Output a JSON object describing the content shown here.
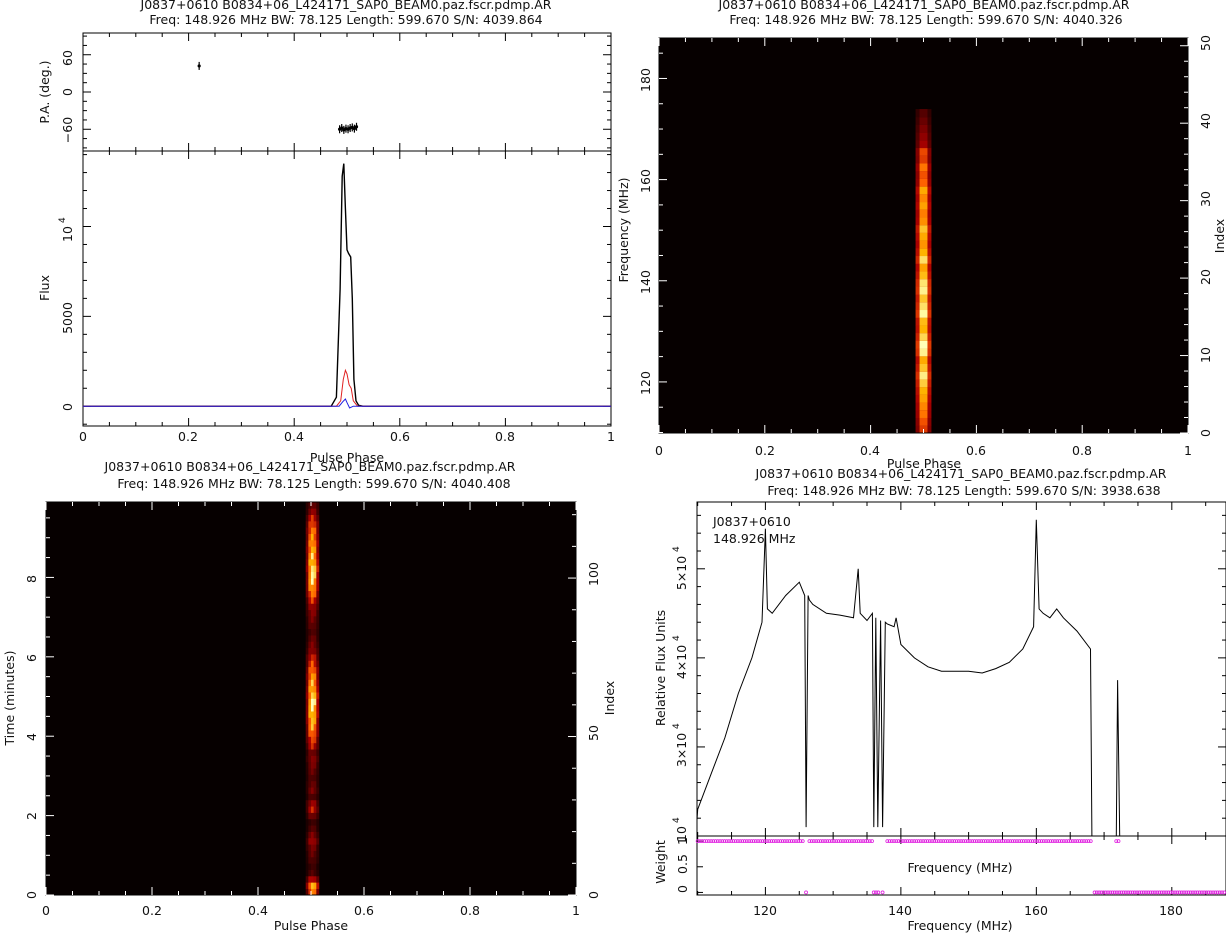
{
  "chart_data": [
    {
      "id": "profile",
      "type": "line",
      "title": "J0837+0610  B0834+06_L424171_SAP0_BEAM0.paz.fscr.pdmp.AR",
      "subtitle": "Freq: 148.926 MHz BW: 78.125 Length: 599.670 S/N: 4039.864",
      "xlabel": "Pulse Phase",
      "ylabel": "Flux",
      "ylabel_top": "P.A. (deg.)",
      "xlim": [
        0,
        1
      ],
      "ylim": [
        -1100,
        14200
      ],
      "pa_ylim": [
        -95,
        95
      ],
      "xticks": [
        "0",
        "0.2",
        "0.4",
        "0.6",
        "0.8",
        "1"
      ],
      "yticks": [
        "0",
        "5000"
      ],
      "ytick_sci": "10",
      "ytick_sci_exp": "4",
      "pa_ticks": [
        "60",
        "0",
        "−60"
      ],
      "series": [
        {
          "color": "#000000",
          "x": [
            0,
            0.47,
            0.48,
            0.487,
            0.491,
            0.494,
            0.497,
            0.5,
            0.503,
            0.507,
            0.51,
            0.513,
            0.517,
            0.522,
            0.53,
            1
          ],
          "y": [
            0,
            0,
            500,
            6500,
            12800,
            13500,
            11000,
            8700,
            8500,
            8300,
            6000,
            1500,
            300,
            50,
            0,
            0
          ]
        },
        {
          "color": "#e02020",
          "x": [
            0,
            0.48,
            0.488,
            0.493,
            0.497,
            0.5,
            0.504,
            0.508,
            0.512,
            0.52,
            1
          ],
          "y": [
            0,
            0,
            300,
            1500,
            2000,
            1800,
            1200,
            1000,
            300,
            0,
            0
          ]
        },
        {
          "color": "#2020e0",
          "x": [
            0,
            0.485,
            0.492,
            0.497,
            0.5,
            0.505,
            0.512,
            1
          ],
          "y": [
            0,
            0,
            250,
            400,
            200,
            -100,
            0,
            0
          ]
        }
      ],
      "pa_points": [
        {
          "x": 0.22,
          "y": 42
        },
        {
          "x": 0.486,
          "y": -60
        },
        {
          "x": 0.49,
          "y": -58
        },
        {
          "x": 0.494,
          "y": -61
        },
        {
          "x": 0.498,
          "y": -59
        },
        {
          "x": 0.502,
          "y": -60
        },
        {
          "x": 0.506,
          "y": -58
        },
        {
          "x": 0.51,
          "y": -57
        },
        {
          "x": 0.514,
          "y": -59
        },
        {
          "x": 0.518,
          "y": -56
        }
      ]
    },
    {
      "id": "freq-phase",
      "type": "heatmap",
      "title": "J0837+0610  B0834+06_L424171_SAP0_BEAM0.paz.fscr.pdmp.AR",
      "subtitle": "Freq: 148.926 MHz BW: 78.125 Length: 599.670 S/N: 4040.326",
      "xlabel": "Pulse Phase",
      "ylabel": "Frequency (MHz)",
      "ylabel_right": "Index",
      "xlim": [
        0,
        1
      ],
      "ylim": [
        109.9,
        188.0
      ],
      "ylim_right": [
        0,
        51
      ],
      "xticks": [
        "0",
        "0.2",
        "0.4",
        "0.6",
        "0.8",
        "1"
      ],
      "yticks": [
        "120",
        "140",
        "160",
        "180"
      ],
      "yticks_right": [
        "0",
        "10",
        "20",
        "30",
        "40",
        "50"
      ],
      "pulse_phase": [
        0.485,
        0.515
      ],
      "channel_intensity": [
        0.55,
        0.6,
        0.68,
        0.72,
        0.78,
        0.82,
        0.88,
        0.95,
        0.86,
        0.8,
        0.96,
        1.0,
        0.9,
        0.82,
        0.84,
        0.98,
        0.92,
        0.86,
        0.96,
        0.93,
        0.84,
        0.78,
        0.92,
        0.82,
        0.75,
        0.8,
        0.86,
        0.74,
        0.7,
        0.78,
        0.72,
        0.8,
        0.64,
        0.6,
        0.68,
        0.55,
        0.58,
        0.4,
        0.35,
        0.3,
        0.25,
        0.2
      ]
    },
    {
      "id": "time-phase",
      "type": "heatmap",
      "title": "J0837+0610  B0834+06_L424171_SAP0_BEAM0.paz.fscr.pdmp.AR",
      "subtitle": "Freq: 148.926 MHz BW: 78.125 Length: 599.670 S/N: 4040.408",
      "xlabel": "Pulse Phase",
      "ylabel": "Time (minutes)",
      "ylabel_right": "Index",
      "xlim": [
        0,
        1
      ],
      "ylim": [
        0,
        9.9
      ],
      "ylim_right": [
        0,
        124
      ],
      "xticks": [
        "0",
        "0.2",
        "0.4",
        "0.6",
        "0.8",
        "1"
      ],
      "yticks": [
        "0",
        "2",
        "4",
        "6",
        "8"
      ],
      "yticks_right": [
        "0",
        "50",
        "100"
      ],
      "pulse_phase": [
        0.49,
        0.515
      ],
      "subint_intensity": [
        0.7,
        0.9,
        0.5,
        0.2,
        0.15,
        0.2,
        0.25,
        0.3,
        0.4,
        0.3,
        0.2,
        0.15,
        0.3,
        0.5,
        0.4,
        0.2,
        0.3,
        0.25,
        0.2,
        0.25,
        0.3,
        0.35,
        0.3,
        0.5,
        0.6,
        0.7,
        0.8,
        0.85,
        0.9,
        0.95,
        1.0,
        0.95,
        0.9,
        0.85,
        0.8,
        0.7,
        0.6,
        0.5,
        0.35,
        0.3,
        0.25,
        0.2,
        0.25,
        0.3,
        0.35,
        0.4,
        0.55,
        0.7,
        0.8,
        0.9,
        0.95,
        1.0,
        0.95,
        0.9,
        0.85,
        0.8,
        0.75,
        0.7,
        0.6,
        0.5,
        0.35,
        0.25
      ]
    },
    {
      "id": "bandpass",
      "type": "line",
      "title": "J0837+0610  B0834+06_L424171_SAP0_BEAM0.paz.fscr.pdmp.AR",
      "subtitle": "Freq: 148.926 MHz BW: 78.125 Length: 599.670 S/N: 3938.638",
      "annotation_line1": "J0837+0610",
      "annotation_line2": "148.926 MHz",
      "xlabel": "Frequency (MHz)",
      "ylabel": "Relative Flux Units",
      "ylabel_weight": "Weight",
      "xlabel_inner": "Frequency (MHz)",
      "xlim": [
        109.9,
        188.0
      ],
      "ylim": [
        20000,
        57500
      ],
      "weight_ylim": [
        -0.05,
        1.1
      ],
      "xticks": [
        "120",
        "140",
        "160",
        "180"
      ],
      "ytick_labels": [
        {
          "mant": "5×10",
          "exp": "4",
          "value": 50000
        },
        {
          "mant": "4×10",
          "exp": "4",
          "value": 40000
        },
        {
          "mant": "3×10",
          "exp": "4",
          "value": 30000
        },
        {
          "mant": "10",
          "exp": "4",
          "value": 20000
        }
      ],
      "weight_ticks": [
        "0",
        "0.5"
      ],
      "weight_top_label": "1",
      "series": [
        {
          "color": "#000000",
          "x": [
            109.9,
            110,
            112,
            114,
            116,
            118,
            119.5,
            120,
            120.3,
            121,
            123,
            125,
            125.8,
            126,
            126.3,
            126.5,
            127,
            129,
            131,
            133,
            133.7,
            134,
            135,
            135.8,
            136,
            136.3,
            136.6,
            137,
            137.3,
            137.7,
            138,
            139,
            139.3,
            140,
            142,
            144,
            146,
            148,
            150,
            152,
            154,
            156,
            158,
            159.6,
            160,
            160.4,
            161,
            162,
            163,
            164,
            166,
            168,
            168.2,
            168.6,
            169,
            171,
            171.8,
            172,
            172.3,
            172.6,
            173,
            188
          ],
          "y": [
            21800,
            23000,
            27000,
            31000,
            36000,
            40000,
            44000,
            54500,
            45500,
            45000,
            47000,
            48500,
            47000,
            21000,
            47000,
            46500,
            46000,
            45000,
            44800,
            44500,
            50000,
            45000,
            44200,
            45000,
            21000,
            44500,
            21000,
            44200,
            21000,
            44000,
            43800,
            43500,
            44500,
            41500,
            40000,
            39000,
            38500,
            38500,
            38500,
            38300,
            38800,
            39500,
            41000,
            43500,
            55500,
            45500,
            45000,
            44500,
            45500,
            44500,
            43000,
            41000,
            20000,
            20000,
            20000,
            20000,
            20000,
            37500,
            20000,
            20000,
            20000,
            20000
          ]
        }
      ],
      "weights": {
        "ones": [
          [
            110,
            125.8
          ],
          [
            126.5,
            135.8
          ],
          [
            138,
            168.2
          ],
          [
            171.8,
            172.2
          ]
        ],
        "zeros": [
          [
            126,
            126.3
          ],
          [
            136,
            136.8
          ],
          [
            137.3,
            137.6
          ],
          [
            168.6,
            188
          ]
        ]
      },
      "marker_color": "#e020e0"
    }
  ]
}
